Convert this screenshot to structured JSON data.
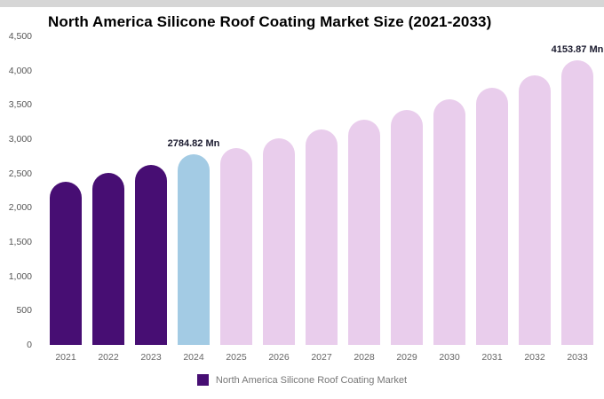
{
  "title": "North America Silicone Roof Coating Market Size (2021-2033)",
  "legend": {
    "label": "North America Silicone Roof Coating Market",
    "color": "#470e73"
  },
  "colors": {
    "historical": "#470e73",
    "current": "#a3cbe4",
    "forecast": "#e9cdec"
  },
  "chart_data": {
    "type": "bar",
    "title": "North America Silicone Roof Coating Market Size (2021-2033)",
    "xlabel": "",
    "ylabel": "",
    "ylim": [
      0,
      4500
    ],
    "grid": false,
    "legend_position": "bottom",
    "categories": [
      "2021",
      "2022",
      "2023",
      "2024",
      "2025",
      "2026",
      "2027",
      "2028",
      "2029",
      "2030",
      "2031",
      "2032",
      "2033"
    ],
    "values": [
      2380,
      2510,
      2630,
      2784.82,
      2870,
      3010,
      3140,
      3290,
      3430,
      3580,
      3750,
      3930,
      4153.87
    ],
    "unit": "Mn",
    "bar_colors": [
      "#470e73",
      "#470e73",
      "#470e73",
      "#a3cbe4",
      "#e9cdec",
      "#e9cdec",
      "#e9cdec",
      "#e9cdec",
      "#e9cdec",
      "#e9cdec",
      "#e9cdec",
      "#e9cdec",
      "#e9cdec"
    ],
    "annotations": [
      {
        "index": 3,
        "text": "2784.82 Mn"
      },
      {
        "index": 12,
        "text": "4153.87 Mn"
      }
    ],
    "yticks": [
      {
        "value": 0,
        "label": "0"
      },
      {
        "value": 500,
        "label": "500"
      },
      {
        "value": 1000,
        "label": "1,000"
      },
      {
        "value": 1500,
        "label": "1,500"
      },
      {
        "value": 2000,
        "label": "2,000"
      },
      {
        "value": 2500,
        "label": "2,500"
      },
      {
        "value": 3000,
        "label": "3,000"
      },
      {
        "value": 3500,
        "label": "3,500"
      },
      {
        "value": 4000,
        "label": "4,000"
      },
      {
        "value": 4500,
        "label": "4,500"
      }
    ]
  }
}
